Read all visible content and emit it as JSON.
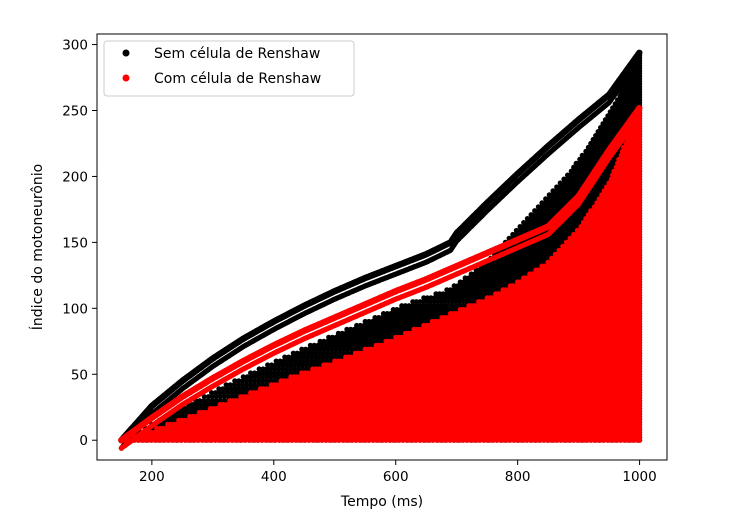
{
  "chart_data": {
    "type": "scatter",
    "title": "",
    "xlabel": "Tempo (ms)",
    "ylabel": "Índice do motoneurônio",
    "xlim": [
      110,
      1045
    ],
    "ylim": [
      -15,
      308
    ],
    "x_ticks": [
      200,
      400,
      600,
      800,
      1000
    ],
    "y_ticks": [
      0,
      50,
      100,
      150,
      200,
      250,
      300
    ],
    "x_tick_labels": [
      "200",
      "400",
      "600",
      "800",
      "1000"
    ],
    "y_tick_labels": [
      "0",
      "50",
      "100",
      "150",
      "200",
      "250",
      "300"
    ],
    "grid": false,
    "legend_position": "top-left",
    "series": [
      {
        "name": "Sem célula de Renshaw",
        "color": "#000000",
        "marker": "dot",
        "envelope_x": [
          150,
          200,
          250,
          300,
          350,
          400,
          450,
          500,
          550,
          600,
          650,
          690,
          700,
          750,
          800,
          850,
          900,
          950,
          1000
        ],
        "envelope_y": [
          0,
          26,
          45,
          62,
          77,
          90,
          102,
          113,
          123,
          132,
          141,
          150,
          157,
          180,
          202,
          223,
          243,
          262,
          294
        ],
        "recruitment_x": [
          150,
          175,
          200,
          240,
          280,
          330,
          380,
          440,
          500,
          560,
          620,
          690,
          720,
          760,
          800,
          840,
          880,
          920,
          960,
          1000
        ],
        "recruitment_y": [
          0,
          5,
          12,
          22,
          32,
          44,
          55,
          68,
          80,
          92,
          104,
          115,
          125,
          140,
          160,
          180,
          200,
          225,
          255,
          294
        ]
      },
      {
        "name": "Com célula de Renshaw",
        "color": "#ff0000",
        "marker": "dot",
        "envelope_x": [
          150,
          200,
          250,
          300,
          350,
          400,
          450,
          500,
          550,
          600,
          650,
          700,
          750,
          800,
          850,
          900,
          950,
          1000
        ],
        "envelope_y": [
          0,
          17,
          33,
          47,
          60,
          72,
          83,
          93,
          103,
          113,
          122,
          132,
          142,
          152,
          162,
          185,
          220,
          252
        ],
        "recruitment_x": [
          150,
          200,
          250,
          300,
          350,
          400,
          450,
          500,
          550,
          600,
          650,
          700,
          750,
          800,
          850,
          900,
          950,
          1000
        ],
        "recruitment_y": [
          0,
          8,
          16,
          25,
          34,
          43,
          52,
          60,
          69,
          78,
          88,
          98,
          108,
          120,
          135,
          160,
          195,
          252
        ]
      }
    ]
  }
}
